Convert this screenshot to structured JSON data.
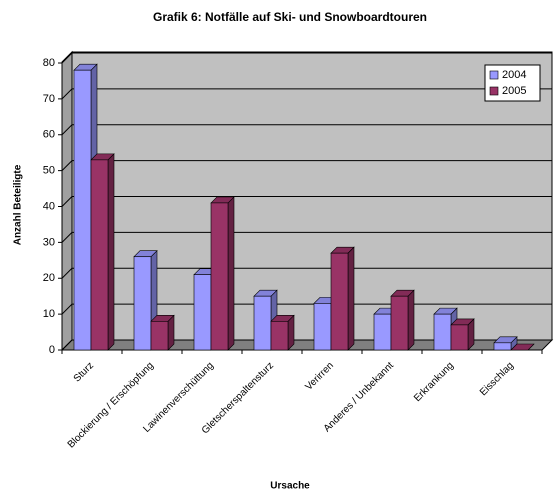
{
  "chart_data": {
    "type": "bar3d",
    "title": "Grafik 6: Notfälle auf Ski- und Snowboardtouren",
    "x_label": "Ursache",
    "y_label": "Anzahl Beteiligte",
    "categories": [
      "Sturz",
      "Blockierung / Erschöpfung",
      "Lawinenverschüttung",
      "Gletscherspaltensturz",
      "Verirren",
      "Anderes / Unbekannt",
      "Erkrankung",
      "Eisschlag"
    ],
    "series": [
      {
        "name": "2004",
        "color": "#9999ff",
        "values": [
          78,
          26,
          21,
          15,
          13,
          10,
          10,
          2
        ]
      },
      {
        "name": "2005",
        "color": "#993366",
        "values": [
          53,
          8,
          41,
          8,
          27,
          15,
          7,
          0
        ]
      }
    ],
    "ylim": [
      0,
      80
    ],
    "yticks": [
      0,
      10,
      20,
      30,
      40,
      50,
      60,
      70,
      80
    ],
    "grid": true,
    "legend": "top-right"
  }
}
